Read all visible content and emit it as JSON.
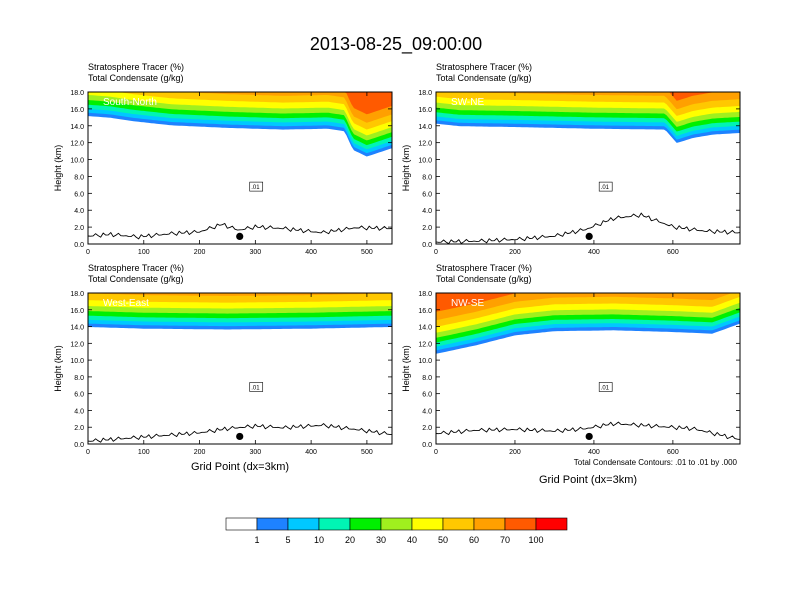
{
  "title": "2013-08-25_09:00:00",
  "note": "Total Condensate Contours: .01 to .01 by .000",
  "xlabel": "Grid Point (dx=3km)",
  "chart_data": {
    "type": "heatmap",
    "title": "2013-08-25_09:00:00",
    "variables": [
      {
        "name": "Stratosphere Tracer",
        "unit": "(%)"
      },
      {
        "name": "Total Condensate",
        "unit": "(g/kg)"
      }
    ],
    "ylabel": "Height (km)",
    "ylim": [
      0,
      18
    ],
    "yticks": [
      "0.0",
      "2.0",
      "4.0",
      "6.0",
      "8.0",
      "10.0",
      "12.0",
      "14.0",
      "16.0",
      "18.0"
    ],
    "contour_label": ".01",
    "panels": [
      {
        "label": "South-North",
        "xlim": [
          0,
          545
        ],
        "xticks": [
          0,
          100,
          200,
          300,
          400,
          500
        ],
        "marker_x": 272,
        "tracer_bottom": [
          {
            "x": 0,
            "km": 14.8
          },
          {
            "x": 40,
            "km": 14.6
          },
          {
            "x": 80,
            "km": 14.2
          },
          {
            "x": 150,
            "km": 13.7
          },
          {
            "x": 250,
            "km": 13.4
          },
          {
            "x": 350,
            "km": 13.2
          },
          {
            "x": 430,
            "km": 13.3
          },
          {
            "x": 460,
            "km": 13.0
          },
          {
            "x": 475,
            "km": 10.8
          },
          {
            "x": 500,
            "km": 10.0
          },
          {
            "x": 545,
            "km": 11.0
          }
        ],
        "terrain": [
          {
            "x": 0,
            "km": 0.9
          },
          {
            "x": 40,
            "km": 1.1
          },
          {
            "x": 90,
            "km": 0.8
          },
          {
            "x": 150,
            "km": 1.2
          },
          {
            "x": 200,
            "km": 1.4
          },
          {
            "x": 240,
            "km": 2.3
          },
          {
            "x": 270,
            "km": 1.6
          },
          {
            "x": 300,
            "km": 2.0
          },
          {
            "x": 350,
            "km": 1.8
          },
          {
            "x": 420,
            "km": 1.3
          },
          {
            "x": 480,
            "km": 1.9
          },
          {
            "x": 545,
            "km": 1.8
          }
        ]
      },
      {
        "label": "SW-NE",
        "xlim": [
          0,
          770
        ],
        "xticks": [
          0,
          200,
          400,
          600
        ],
        "marker_x": 388,
        "tracer_bottom": [
          {
            "x": 0,
            "km": 13.9
          },
          {
            "x": 60,
            "km": 13.6
          },
          {
            "x": 200,
            "km": 13.5
          },
          {
            "x": 400,
            "km": 13.3
          },
          {
            "x": 580,
            "km": 13.2
          },
          {
            "x": 610,
            "km": 11.6
          },
          {
            "x": 650,
            "km": 12.2
          },
          {
            "x": 700,
            "km": 12.6
          },
          {
            "x": 770,
            "km": 12.8
          }
        ],
        "terrain": [
          {
            "x": 0,
            "km": 0.2
          },
          {
            "x": 100,
            "km": 0.3
          },
          {
            "x": 200,
            "km": 0.5
          },
          {
            "x": 300,
            "km": 0.9
          },
          {
            "x": 380,
            "km": 1.7
          },
          {
            "x": 450,
            "km": 3.0
          },
          {
            "x": 520,
            "km": 3.4
          },
          {
            "x": 600,
            "km": 2.0
          },
          {
            "x": 680,
            "km": 1.5
          },
          {
            "x": 770,
            "km": 1.3
          }
        ]
      },
      {
        "label": "West-East",
        "xlim": [
          0,
          545
        ],
        "xticks": [
          0,
          100,
          200,
          300,
          400,
          500
        ],
        "marker_x": 272,
        "tracer_bottom": [
          {
            "x": 0,
            "km": 13.6
          },
          {
            "x": 100,
            "km": 13.4
          },
          {
            "x": 250,
            "km": 13.3
          },
          {
            "x": 400,
            "km": 13.4
          },
          {
            "x": 545,
            "km": 13.6
          }
        ],
        "terrain": [
          {
            "x": 0,
            "km": 0.3
          },
          {
            "x": 60,
            "km": 0.6
          },
          {
            "x": 120,
            "km": 0.9
          },
          {
            "x": 200,
            "km": 1.3
          },
          {
            "x": 250,
            "km": 1.8
          },
          {
            "x": 300,
            "km": 2.1
          },
          {
            "x": 350,
            "km": 1.9
          },
          {
            "x": 420,
            "km": 2.2
          },
          {
            "x": 480,
            "km": 1.7
          },
          {
            "x": 545,
            "km": 1.1
          }
        ]
      },
      {
        "label": "NW-SE",
        "xlim": [
          0,
          770
        ],
        "xticks": [
          0,
          200,
          400,
          600
        ],
        "marker_x": 388,
        "tracer_bottom": [
          {
            "x": 0,
            "km": 10.4
          },
          {
            "x": 100,
            "km": 11.4
          },
          {
            "x": 200,
            "km": 12.6
          },
          {
            "x": 300,
            "km": 13.1
          },
          {
            "x": 450,
            "km": 13.2
          },
          {
            "x": 600,
            "km": 13.0
          },
          {
            "x": 700,
            "km": 12.8
          },
          {
            "x": 770,
            "km": 14.0
          }
        ],
        "terrain": [
          {
            "x": 0,
            "km": 1.2
          },
          {
            "x": 100,
            "km": 1.6
          },
          {
            "x": 200,
            "km": 1.7
          },
          {
            "x": 300,
            "km": 1.5
          },
          {
            "x": 380,
            "km": 1.8
          },
          {
            "x": 450,
            "km": 2.4
          },
          {
            "x": 550,
            "km": 2.1
          },
          {
            "x": 650,
            "km": 1.8
          },
          {
            "x": 770,
            "km": 0.5
          }
        ]
      }
    ],
    "colorbar": {
      "labels": [
        "1",
        "5",
        "10",
        "20",
        "30",
        "40",
        "50",
        "60",
        "70",
        "100"
      ],
      "colors": [
        "#ffffff",
        "#1e82ff",
        "#00c8ff",
        "#00f5b4",
        "#00f000",
        "#a0f01e",
        "#ffff00",
        "#ffc800",
        "#ffa000",
        "#ff5a00",
        "#ff0000"
      ]
    }
  }
}
